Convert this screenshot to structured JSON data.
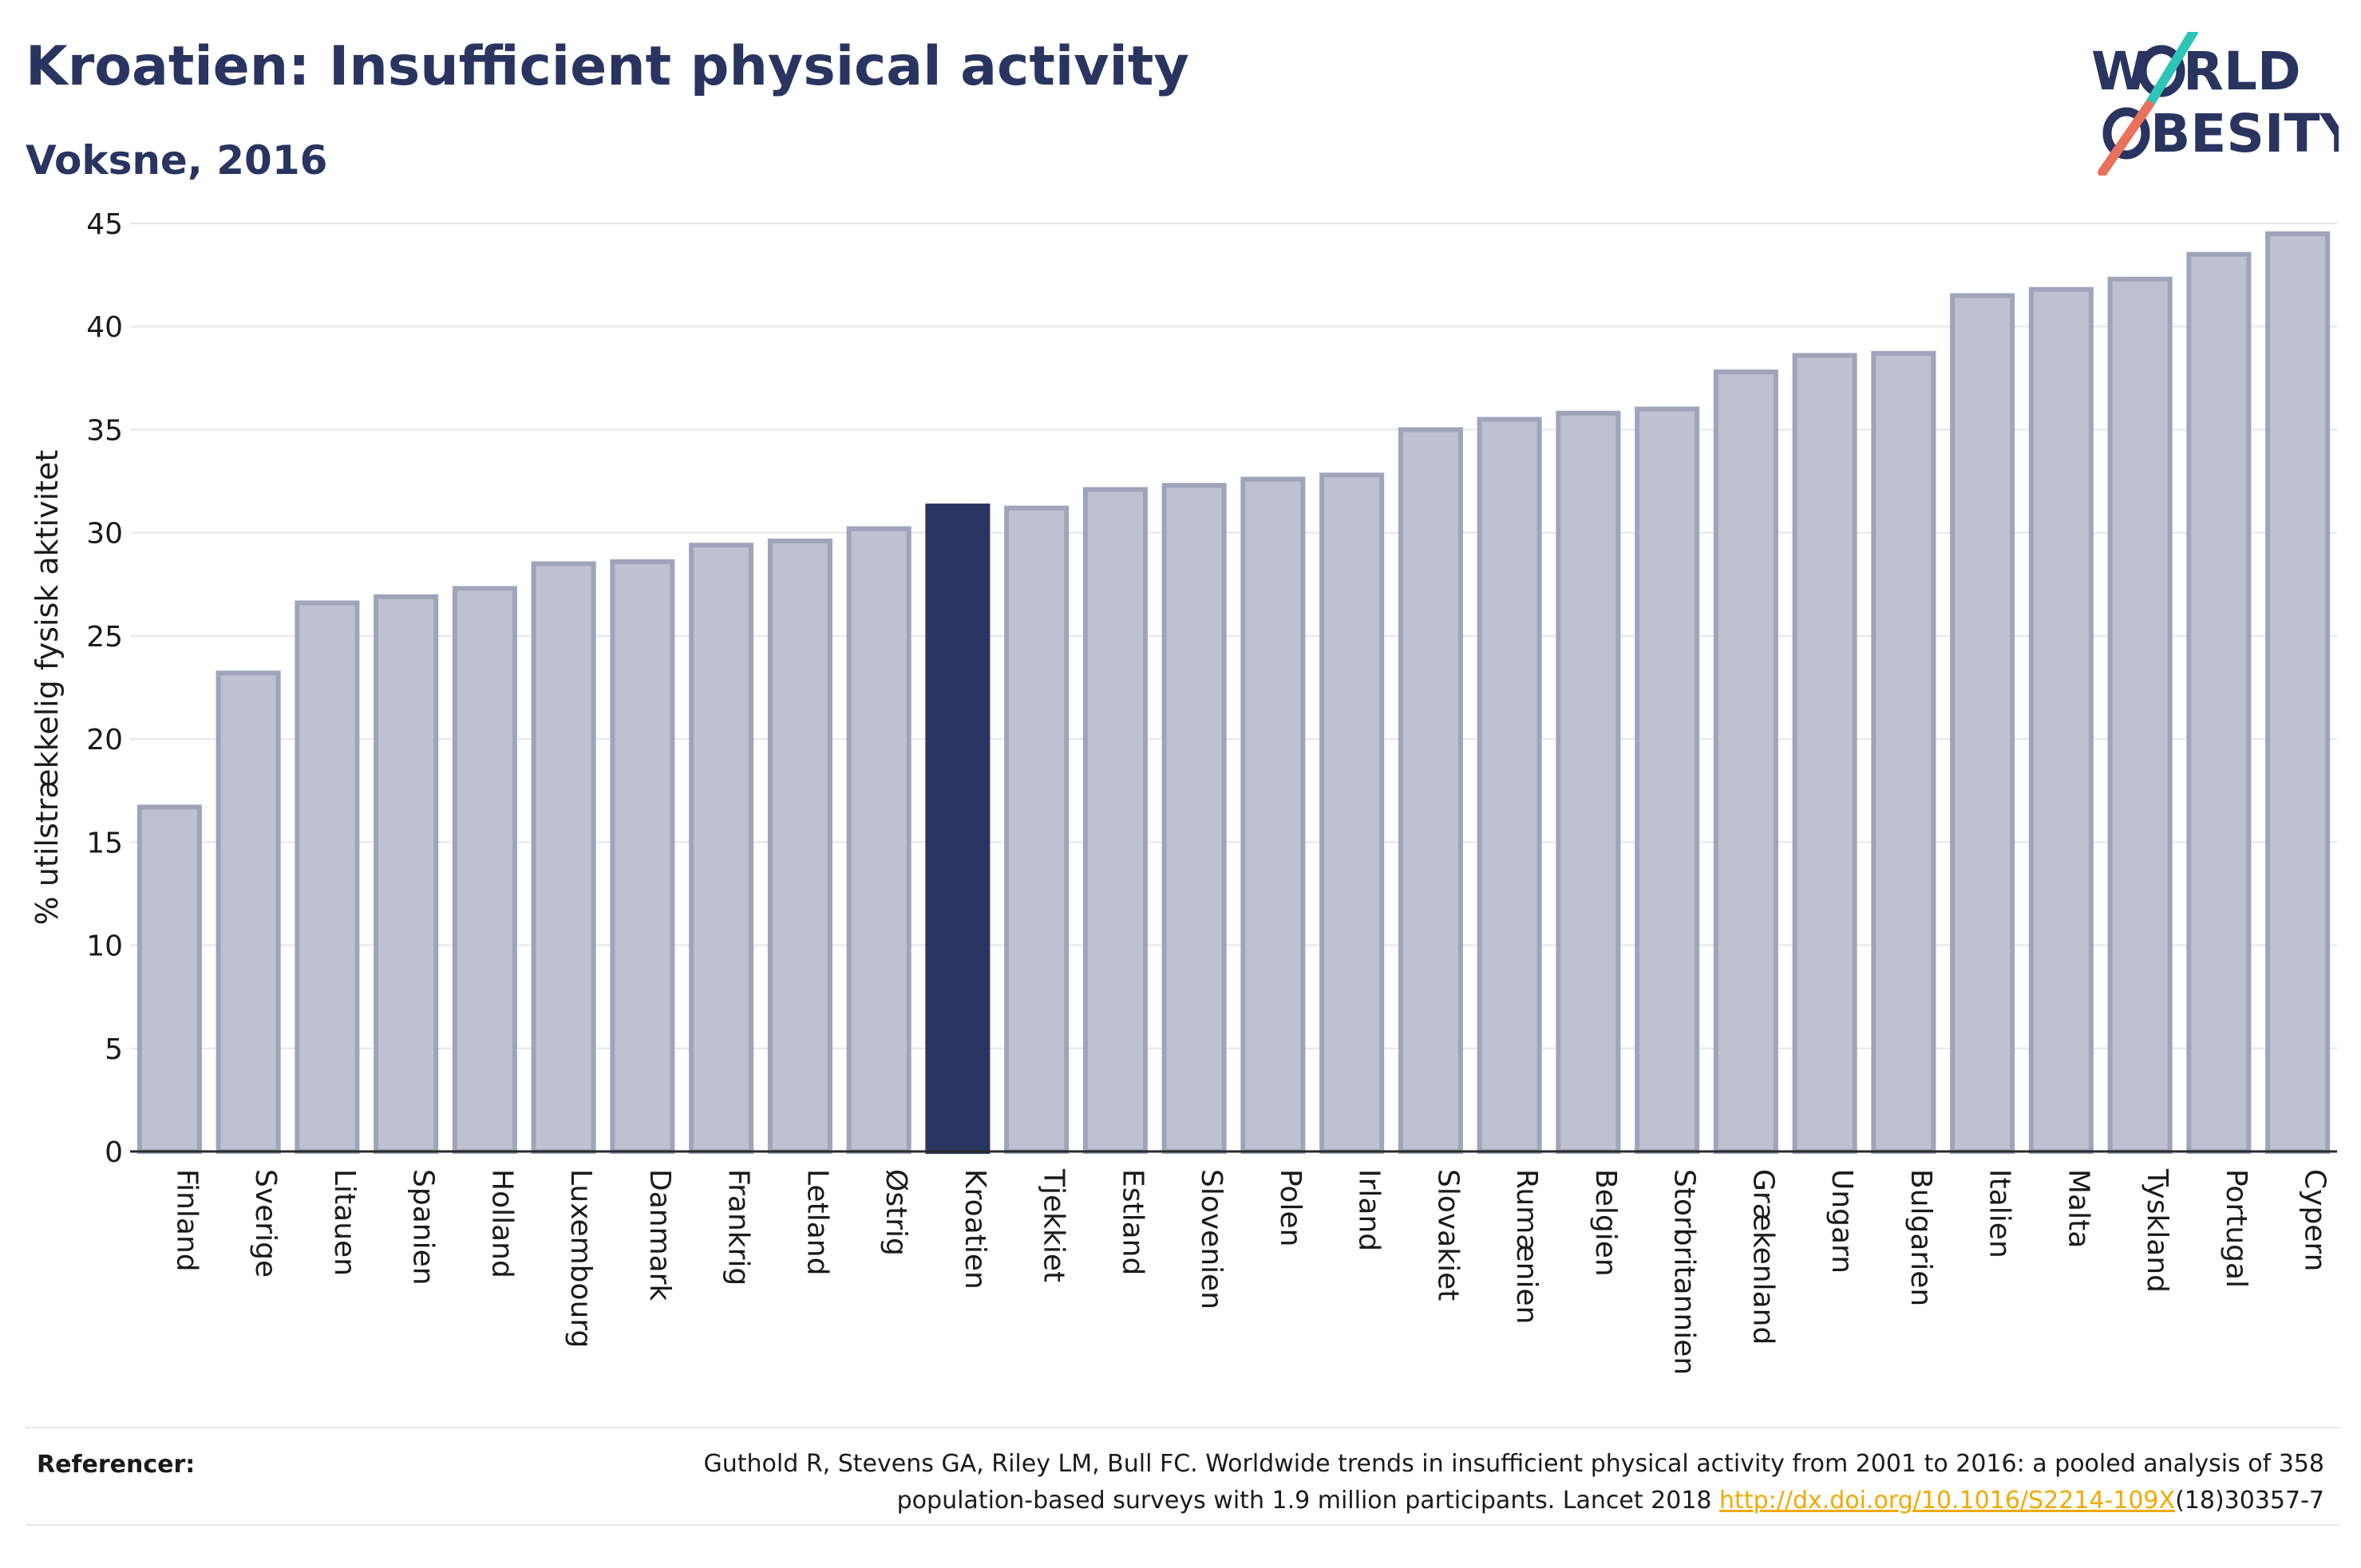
{
  "header": {
    "title": "Kroatien: Insufficient physical activity",
    "subtitle": "Voksne, 2016"
  },
  "logo": {
    "line1_start": "W",
    "line1_end": "RLD",
    "line2_end": "BESITY",
    "text_color": "#2a3460",
    "slash_color_top": "#2ec4b6",
    "slash_color_bottom": "#e8725c"
  },
  "chart_data": {
    "type": "bar",
    "title": "",
    "xlabel": "",
    "ylabel": "% utilstrækkelig fysisk aktivitet",
    "ylim": [
      0,
      45
    ],
    "yticks": [
      0,
      5,
      10,
      15,
      20,
      25,
      30,
      35,
      40,
      45
    ],
    "grid": true,
    "highlight": "Kroatien",
    "colors": {
      "bar": "#bec1cf",
      "bar_border": "#9fa4bb",
      "highlight": "#2a3460",
      "grid": "#e6e6ea",
      "axis": "#2a2a2a"
    },
    "categories": [
      "Finland",
      "Sverige",
      "Litauen",
      "Spanien",
      "Holland",
      "Luxembourg",
      "Danmark",
      "Frankrig",
      "Letland",
      "Østrig",
      "Kroatien",
      "Tjekkiet",
      "Estland",
      "Slovenien",
      "Polen",
      "Irland",
      "Slovakiet",
      "Rumænien",
      "Belgien",
      "Storbritannien",
      "Grækenland",
      "Ungarn",
      "Bulgarien",
      "Italien",
      "Malta",
      "Tyskland",
      "Portugal",
      "Cypern"
    ],
    "values": [
      16.7,
      23.2,
      26.6,
      26.9,
      27.3,
      28.5,
      28.6,
      29.4,
      29.6,
      30.2,
      31.3,
      31.2,
      32.1,
      32.3,
      32.6,
      32.8,
      35.0,
      35.5,
      35.8,
      36.0,
      37.8,
      38.6,
      38.7,
      41.5,
      41.8,
      42.3,
      43.5,
      44.5
    ]
  },
  "references": {
    "label": "Referencer:",
    "text_line1": "Guthold R, Stevens GA, Riley LM, Bull FC. Worldwide trends in insufficient physical activity from 2001 to 2016: a pooled analysis of 358",
    "text_line2_prefix": "population-based surveys with 1.9 million participants. Lancet 2018 ",
    "link": "http://dx.doi.org/10.1016/S2214-109X",
    "text_line2_suffix": "(18)30357-7"
  }
}
